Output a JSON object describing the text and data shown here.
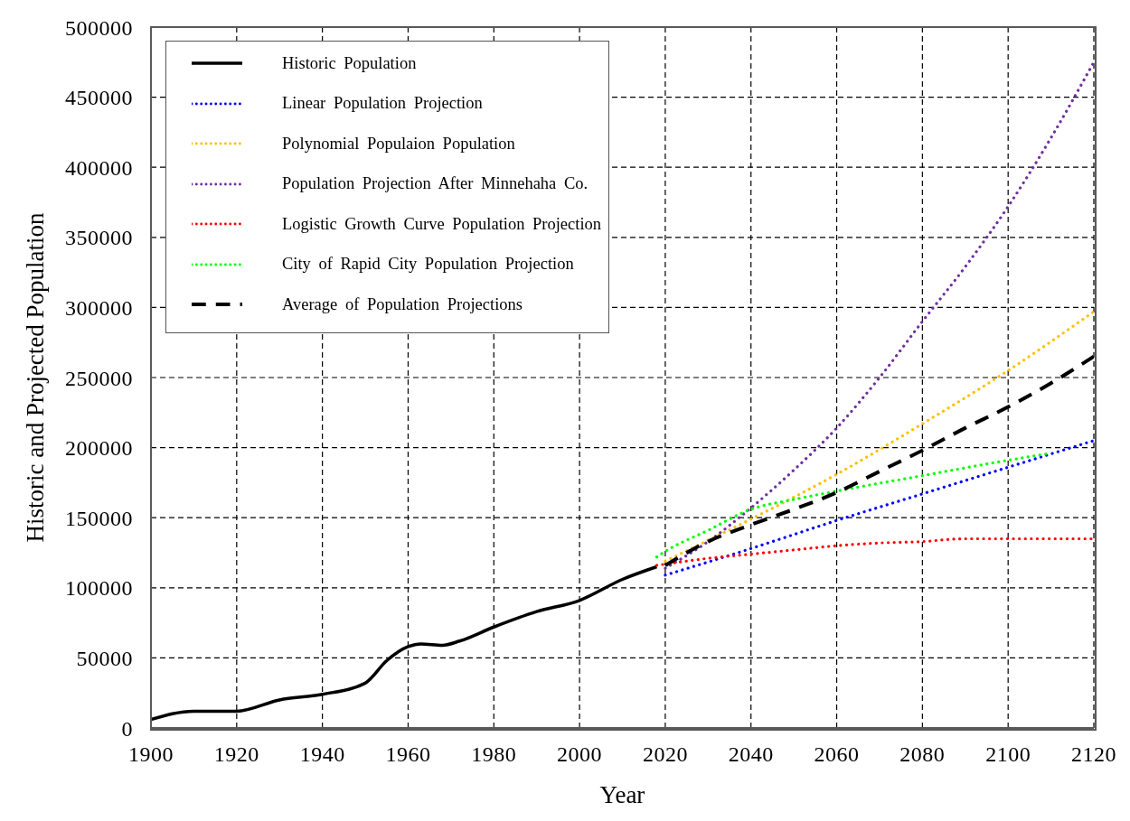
{
  "chart_data": {
    "type": "line",
    "xlabel": "Year",
    "ylabel": "Historic and Projected Population",
    "xlim": [
      1900,
      2120
    ],
    "xticks": [
      1900,
      1920,
      1940,
      1960,
      1980,
      2000,
      2020,
      2040,
      2060,
      2080,
      2100,
      2120
    ],
    "ylim": [
      0,
      500000
    ],
    "yticks": [
      0,
      50000,
      100000,
      150000,
      200000,
      250000,
      300000,
      350000,
      400000,
      450000,
      500000
    ],
    "grid": true,
    "legend": "top left",
    "series": [
      {
        "name": "Historic Population",
        "color": "#000000",
        "line_style": "solid",
        "x": [
          1900,
          1910,
          1920,
          1930,
          1940,
          1950,
          1955,
          1960,
          1963,
          1968,
          1972,
          1980,
          1990,
          2000,
          2010,
          2018
        ],
        "values": [
          6000,
          12000,
          12000,
          20000,
          24000,
          32000,
          48000,
          58000,
          60000,
          59000,
          62000,
          72000,
          83000,
          91000,
          106000,
          115000
        ]
      },
      {
        "name": "Linear Population Projection",
        "color": "#0000ff",
        "line_style": "dotted",
        "x": [
          2020,
          2040,
          2060,
          2080,
          2100,
          2120
        ],
        "values": [
          109000,
          128000,
          148000,
          167000,
          186000,
          205000
        ]
      },
      {
        "name": "Polynomial Populaion Population",
        "color": "#ffc000",
        "line_style": "dotted",
        "x": [
          2020,
          2040,
          2060,
          2080,
          2100,
          2120
        ],
        "values": [
          119000,
          149000,
          181000,
          217000,
          255000,
          297000
        ]
      },
      {
        "name": "Population Projection After Minnehaha Co.",
        "color": "#7030a0",
        "line_style": "dotted",
        "x": [
          2020,
          2030,
          2040,
          2050,
          2060,
          2070,
          2080,
          2090,
          2100,
          2110,
          2120
        ],
        "values": [
          114000,
          133000,
          157000,
          184000,
          214000,
          250000,
          290000,
          329000,
          372000,
          421000,
          475000
        ]
      },
      {
        "name": "Logistic Growth Curve Population Projection",
        "color": "#ff0000",
        "line_style": "dotted",
        "x": [
          2018,
          2030,
          2040,
          2050,
          2060,
          2070,
          2080,
          2090,
          2100,
          2120
        ],
        "values": [
          116000,
          121000,
          124000,
          127000,
          130000,
          132000,
          133000,
          135000,
          135000,
          135000
        ]
      },
      {
        "name": "City of Rapid City Population Projection",
        "color": "#00ff00",
        "line_style": "dotted",
        "x": [
          2018,
          2020,
          2030,
          2040,
          2050,
          2060,
          2080,
          2100,
          2110
        ],
        "values": [
          122000,
          126000,
          141000,
          156000,
          163000,
          169000,
          180000,
          191000,
          196000
        ]
      },
      {
        "name": "Average of Population Projections",
        "color": "#000000",
        "line_style": "dashed",
        "x": [
          2020,
          2030,
          2040,
          2050,
          2060,
          2070,
          2080,
          2090,
          2100,
          2110,
          2120
        ],
        "values": [
          116000,
          133000,
          145000,
          156000,
          168000,
          183000,
          198000,
          214000,
          229000,
          246000,
          265000
        ]
      }
    ]
  }
}
